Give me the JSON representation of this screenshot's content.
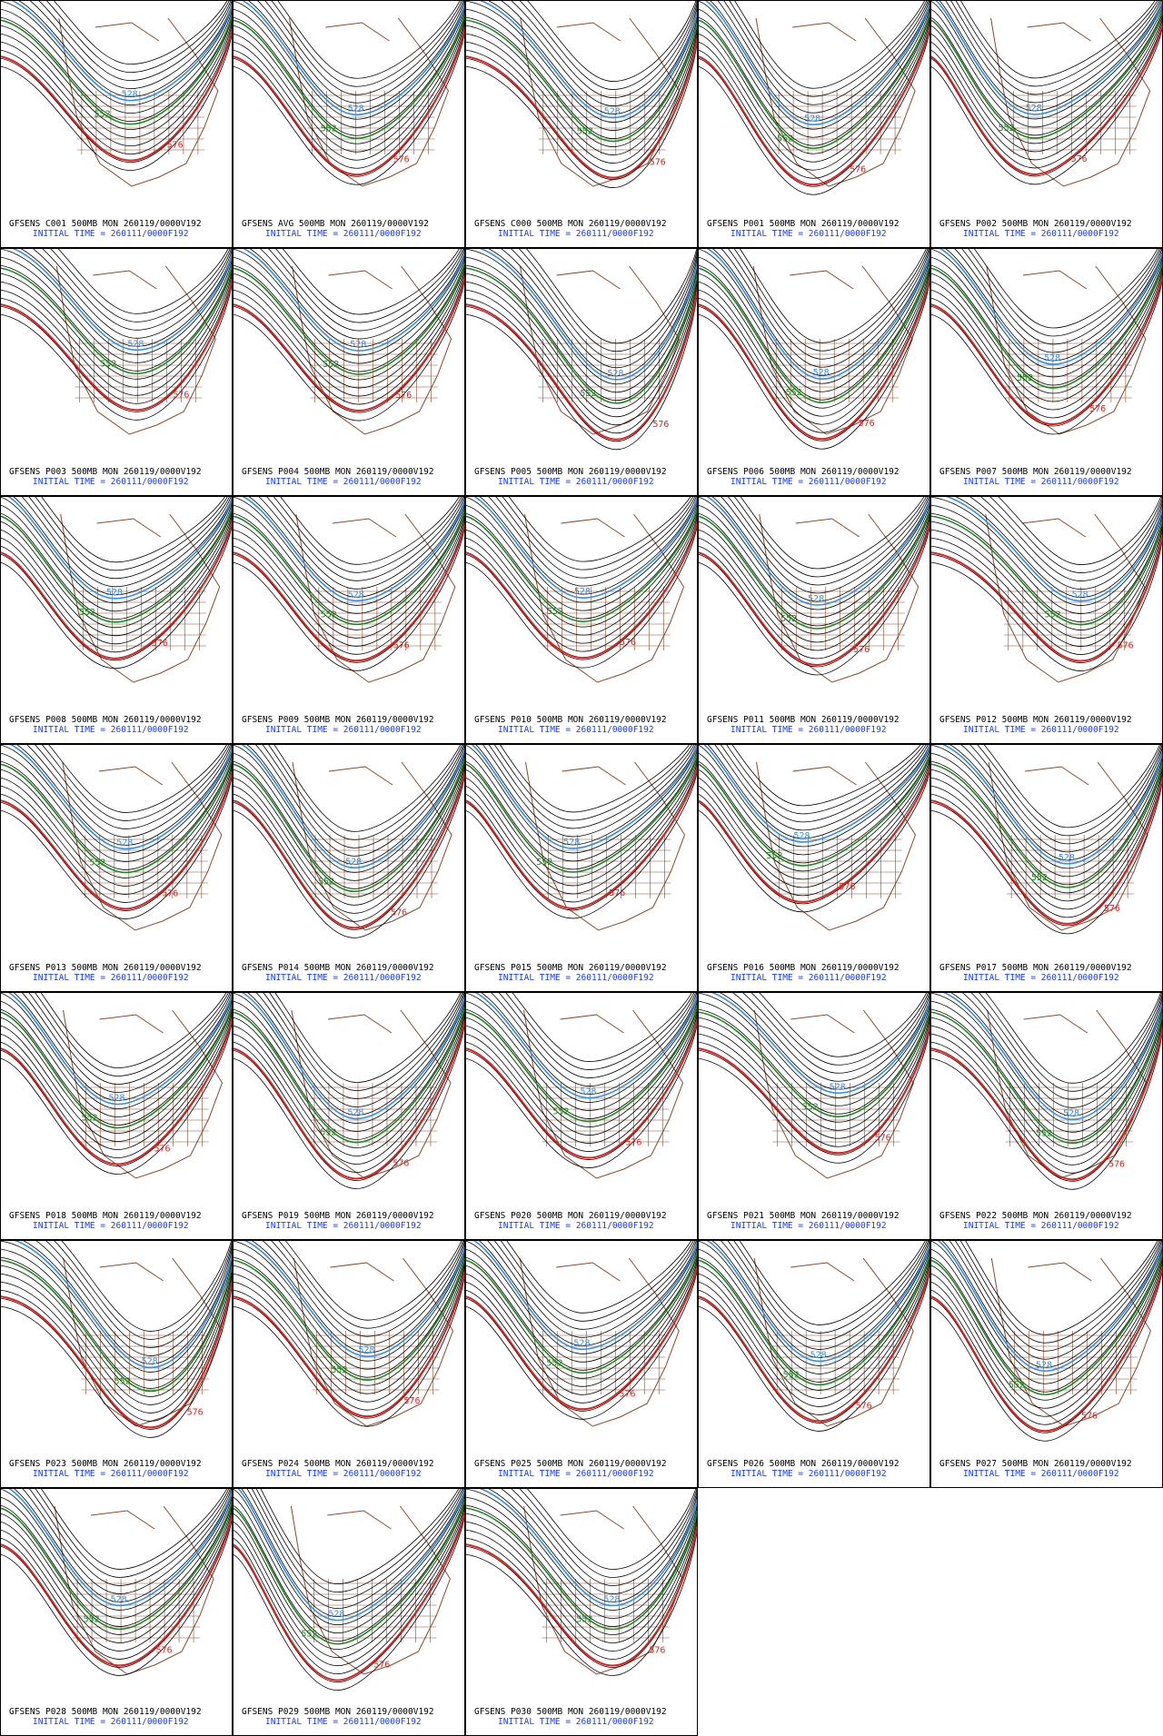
{
  "contour_labels": {
    "red": "576",
    "green": "552",
    "blue": "528"
  },
  "panels": [
    {
      "title": "GFSENS C001 500MB MON 260119/0000V192",
      "init": "INITIAL TIME = 260111/0000F192"
    },
    {
      "title": "GFSENS AVG 500MB MON 260119/0000V192",
      "init": "INITIAL TIME = 260111/0000F192"
    },
    {
      "title": "GFSENS C000 500MB MON 260119/0000V192",
      "init": "INITIAL TIME = 260111/0000F192"
    },
    {
      "title": "GFSENS P001 500MB MON 260119/0000V192",
      "init": "INITIAL TIME = 260111/0000F192"
    },
    {
      "title": "GFSENS P002 500MB MON 260119/0000V192",
      "init": "INITIAL TIME = 260111/0000F192"
    },
    {
      "title": "GFSENS P003 500MB MON 260119/0000V192",
      "init": "INITIAL TIME = 260111/0000F192"
    },
    {
      "title": "GFSENS P004 500MB MON 260119/0000V192",
      "init": "INITIAL TIME = 260111/0000F192"
    },
    {
      "title": "GFSENS P005 500MB MON 260119/0000V192",
      "init": "INITIAL TIME = 260111/0000F192"
    },
    {
      "title": "GFSENS P006 500MB MON 260119/0000V192",
      "init": "INITIAL TIME = 260111/0000F192"
    },
    {
      "title": "GFSENS P007 500MB MON 260119/0000V192",
      "init": "INITIAL TIME = 260111/0000F192"
    },
    {
      "title": "GFSENS P008 500MB MON 260119/0000V192",
      "init": "INITIAL TIME = 260111/0000F192"
    },
    {
      "title": "GFSENS P009 500MB MON 260119/0000V192",
      "init": "INITIAL TIME = 260111/0000F192"
    },
    {
      "title": "GFSENS P010 500MB MON 260119/0000V192",
      "init": "INITIAL TIME = 260111/0000F192"
    },
    {
      "title": "GFSENS P011 500MB MON 260119/0000V192",
      "init": "INITIAL TIME = 260111/0000F192"
    },
    {
      "title": "GFSENS P012 500MB MON 260119/0000V192",
      "init": "INITIAL TIME = 260111/0000F192"
    },
    {
      "title": "GFSENS P013 500MB MON 260119/0000V192",
      "init": "INITIAL TIME = 260111/0000F192"
    },
    {
      "title": "GFSENS P014 500MB MON 260119/0000V192",
      "init": "INITIAL TIME = 260111/0000F192"
    },
    {
      "title": "GFSENS P015 500MB MON 260119/0000V192",
      "init": "INITIAL TIME = 260111/0000F192"
    },
    {
      "title": "GFSENS P016 500MB MON 260119/0000V192",
      "init": "INITIAL TIME = 260111/0000F192"
    },
    {
      "title": "GFSENS P017 500MB MON 260119/0000V192",
      "init": "INITIAL TIME = 260111/0000F192"
    },
    {
      "title": "GFSENS P018 500MB MON 260119/0000V192",
      "init": "INITIAL TIME = 260111/0000F192"
    },
    {
      "title": "GFSENS P019 500MB MON 260119/0000V192",
      "init": "INITIAL TIME = 260111/0000F192"
    },
    {
      "title": "GFSENS P020 500MB MON 260119/0000V192",
      "init": "INITIAL TIME = 260111/0000F192"
    },
    {
      "title": "GFSENS P021 500MB MON 260119/0000V192",
      "init": "INITIAL TIME = 260111/0000F192"
    },
    {
      "title": "GFSENS P022 500MB MON 260119/0000V192",
      "init": "INITIAL TIME = 260111/0000F192"
    },
    {
      "title": "GFSENS P023 500MB MON 260119/0000V192",
      "init": "INITIAL TIME = 260111/0000F192"
    },
    {
      "title": "GFSENS P024 500MB MON 260119/0000V192",
      "init": "INITIAL TIME = 260111/0000F192"
    },
    {
      "title": "GFSENS P025 500MB MON 260119/0000V192",
      "init": "INITIAL TIME = 260111/0000F192"
    },
    {
      "title": "GFSENS P026 500MB MON 260119/0000V192",
      "init": "INITIAL TIME = 260111/0000F192"
    },
    {
      "title": "GFSENS P027 500MB MON 260119/0000V192",
      "init": "INITIAL TIME = 260111/0000F192"
    },
    {
      "title": "GFSENS P028 500MB MON 260119/0000V192",
      "init": "INITIAL TIME = 260111/0000F192"
    },
    {
      "title": "GFSENS P029 500MB MON 260119/0000V192",
      "init": "INITIAL TIME = 260111/0000F192"
    },
    {
      "title": "GFSENS P030 500MB MON 260119/0000V192",
      "init": "INITIAL TIME = 260111/0000F192"
    }
  ]
}
